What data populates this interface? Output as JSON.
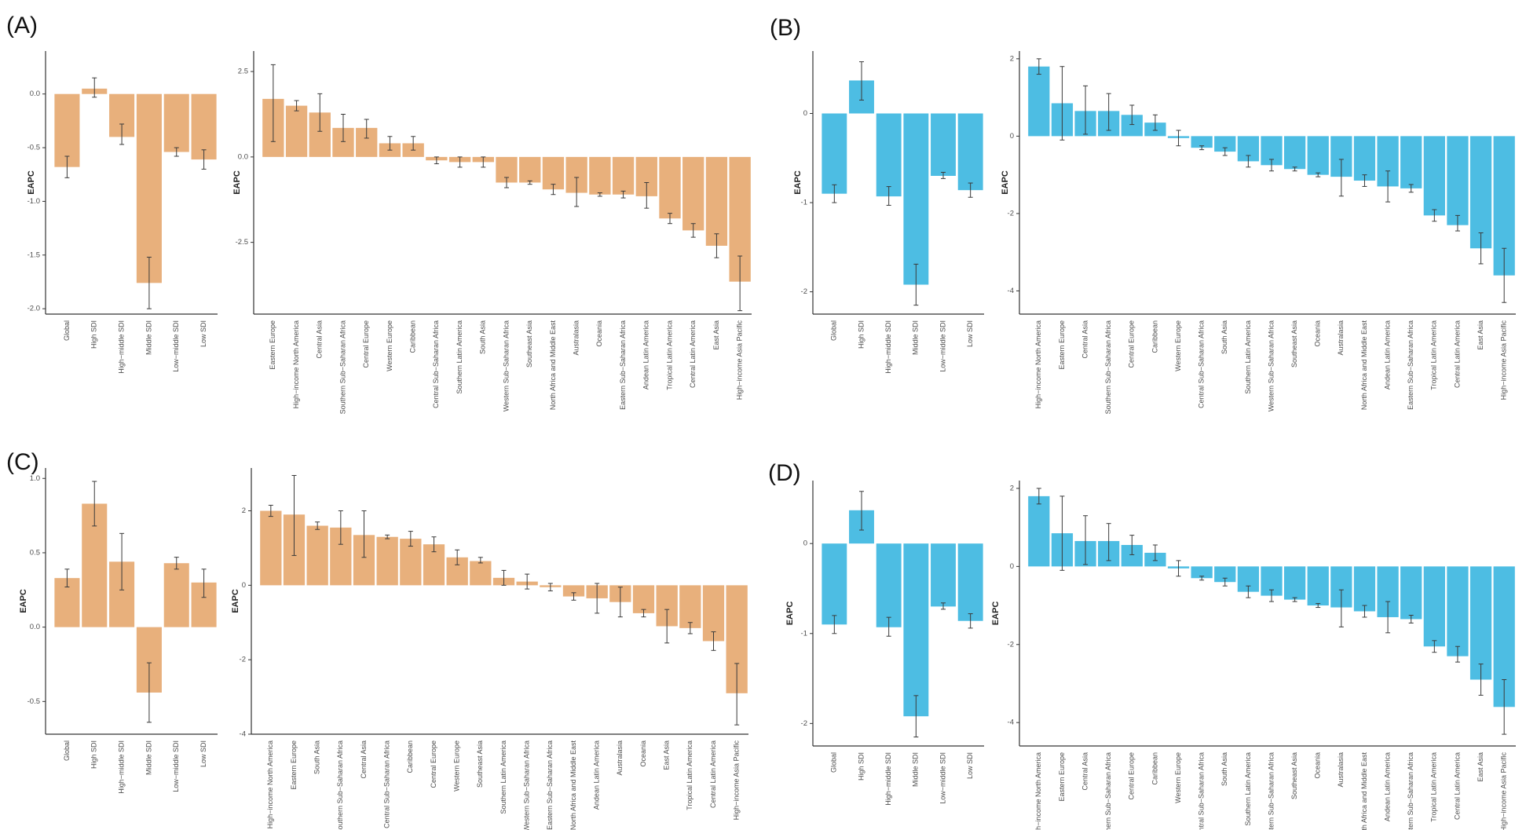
{
  "panel_labels": [
    "(A)",
    "(B)",
    "(C)",
    "(D)"
  ],
  "colors": {
    "orange": "#e8b07c",
    "blue": "#4dbde3",
    "axis": "#333333",
    "error": "#3a3a3a"
  },
  "chart_data": [
    {
      "id": "A-sdi",
      "panel": "(A)",
      "type": "bar",
      "title": "",
      "xlabel": "",
      "ylabel": "EAPC",
      "color": "orange",
      "ylim": [
        -2.05,
        0.4
      ],
      "yticks": [
        0.0,
        -0.5,
        -1.0,
        -1.5,
        -2.0
      ],
      "ytick_labels": [
        "0.0",
        "-0.5",
        "-1.0",
        "-1.5",
        "-2.0"
      ],
      "categories": [
        "Global",
        "High SDI",
        "High−middle SDI",
        "Middle SDI",
        "Low−middle SDI",
        "Low SDI"
      ],
      "values": [
        -0.68,
        0.05,
        -0.4,
        -1.76,
        -0.54,
        -0.61
      ],
      "err_low": [
        -0.78,
        -0.03,
        -0.47,
        -2.0,
        -0.58,
        -0.7
      ],
      "err_high": [
        -0.58,
        0.15,
        -0.28,
        -1.52,
        -0.5,
        -0.52
      ]
    },
    {
      "id": "A-regions",
      "panel": "(A)",
      "type": "bar",
      "title": "",
      "xlabel": "",
      "ylabel": "EAPC",
      "color": "orange",
      "ylim": [
        -4.6,
        3.1
      ],
      "yticks": [
        2.5,
        0.0,
        -2.5
      ],
      "ytick_labels": [
        "2.5",
        "0.0",
        "-2.5"
      ],
      "categories": [
        "Eastern Europe",
        "High−income North America",
        "Central Asia",
        "Southern Sub−Saharan Africa",
        "Central Europe",
        "Western Europe",
        "Caribbean",
        "Central Sub−Saharan Africa",
        "Southern Latin America",
        "South Asia",
        "Western Sub−Saharan Africa",
        "Southeast Asia",
        "North Africa and Middle East",
        "Australasia",
        "Oceania",
        "Eastern Sub−Saharan Africa",
        "Andean Latin America",
        "Tropical Latin America",
        "Central Latin America",
        "East Asia",
        "High−income Asia Pacific"
      ],
      "values": [
        1.7,
        1.5,
        1.3,
        0.85,
        0.85,
        0.4,
        0.4,
        -0.1,
        -0.15,
        -0.15,
        -0.75,
        -0.75,
        -0.95,
        -1.05,
        -1.1,
        -1.1,
        -1.15,
        -1.8,
        -2.15,
        -2.6,
        -3.65
      ],
      "err_low": [
        0.45,
        1.35,
        0.75,
        0.45,
        0.55,
        0.2,
        0.2,
        -0.2,
        -0.3,
        -0.3,
        -0.9,
        -0.8,
        -1.1,
        -1.45,
        -1.15,
        -1.2,
        -1.5,
        -1.95,
        -2.35,
        -2.95,
        -4.5
      ],
      "err_high": [
        2.7,
        1.65,
        1.85,
        1.25,
        1.1,
        0.6,
        0.6,
        0.0,
        0.0,
        0.0,
        -0.6,
        -0.7,
        -0.8,
        -0.6,
        -1.05,
        -1.0,
        -0.75,
        -1.65,
        -1.95,
        -2.25,
        -2.9
      ]
    },
    {
      "id": "B-sdi",
      "panel": "(B)",
      "type": "bar",
      "title": "",
      "xlabel": "",
      "ylabel": "EAPC",
      "color": "blue",
      "ylim": [
        -2.25,
        0.7
      ],
      "yticks": [
        0,
        -1,
        -2
      ],
      "ytick_labels": [
        "0",
        "-1",
        "-2"
      ],
      "categories": [
        "Global",
        "High SDI",
        "High−middle SDI",
        "Middle SDI",
        "Low−middle SDI",
        "Low SDI"
      ],
      "values": [
        -0.9,
        0.37,
        -0.93,
        -1.92,
        -0.7,
        -0.86
      ],
      "err_low": [
        -1.0,
        0.15,
        -1.03,
        -2.15,
        -0.73,
        -0.94
      ],
      "err_high": [
        -0.8,
        0.58,
        -0.82,
        -1.69,
        -0.66,
        -0.78
      ]
    },
    {
      "id": "B-regions",
      "panel": "(B)",
      "type": "bar",
      "title": "",
      "xlabel": "",
      "ylabel": "EAPC",
      "color": "blue",
      "ylim": [
        -4.6,
        2.2
      ],
      "yticks": [
        2,
        0,
        -2,
        -4
      ],
      "ytick_labels": [
        "2",
        "0",
        "-2",
        "-4"
      ],
      "categories": [
        "High−income North America",
        "Eastern Europe",
        "Central Asia",
        "Southern Sub−Saharan Africa",
        "Central Europe",
        "Caribbean",
        "Western Europe",
        "Central Sub−Saharan Africa",
        "South Asia",
        "Southern Latin America",
        "Western Sub−Saharan Africa",
        "Southeast Asia",
        "Oceania",
        "Australasia",
        "North Africa and Middle East",
        "Andean Latin America",
        "Eastern Sub−Saharan Africa",
        "Tropical Latin America",
        "Central Latin America",
        "East Asia",
        "High−income Asia Pacific"
      ],
      "values": [
        1.8,
        0.85,
        0.65,
        0.65,
        0.55,
        0.35,
        -0.05,
        -0.3,
        -0.4,
        -0.65,
        -0.75,
        -0.85,
        -1.0,
        -1.05,
        -1.15,
        -1.3,
        -1.35,
        -2.05,
        -2.3,
        -2.9,
        -3.6
      ],
      "err_low": [
        1.6,
        -0.1,
        0.05,
        0.15,
        0.3,
        0.15,
        -0.25,
        -0.35,
        -0.5,
        -0.8,
        -0.9,
        -0.9,
        -1.05,
        -1.55,
        -1.3,
        -1.7,
        -1.45,
        -2.2,
        -2.45,
        -3.3,
        -4.3
      ],
      "err_high": [
        2.0,
        1.8,
        1.3,
        1.1,
        0.8,
        0.55,
        0.15,
        -0.25,
        -0.3,
        -0.5,
        -0.6,
        -0.8,
        -0.95,
        -0.6,
        -1.0,
        -0.9,
        -1.25,
        -1.9,
        -2.05,
        -2.5,
        -2.9
      ]
    },
    {
      "id": "C-sdi",
      "panel": "(C)",
      "type": "bar",
      "title": "",
      "xlabel": "",
      "ylabel": "EAPC",
      "color": "orange",
      "ylim": [
        -0.72,
        1.07
      ],
      "yticks": [
        1.0,
        0.5,
        0.0,
        -0.5
      ],
      "ytick_labels": [
        "1.0",
        "0.5",
        "0.0",
        "-0.5"
      ],
      "categories": [
        "Global",
        "High SDI",
        "High−middle SDI",
        "Middle SDI",
        "Low−middle SDI",
        "Low SDI"
      ],
      "values": [
        0.33,
        0.83,
        0.44,
        -0.44,
        0.43,
        0.3
      ],
      "err_low": [
        0.27,
        0.68,
        0.25,
        -0.64,
        0.39,
        0.2
      ],
      "err_high": [
        0.39,
        0.98,
        0.63,
        -0.24,
        0.47,
        0.39
      ]
    },
    {
      "id": "C-regions",
      "panel": "(C)",
      "type": "bar",
      "title": "",
      "xlabel": "",
      "ylabel": "EAPC",
      "color": "orange",
      "ylim": [
        -4.0,
        3.15
      ],
      "yticks": [
        2,
        0,
        -2,
        -4
      ],
      "ytick_labels": [
        "2",
        "0",
        "-2",
        "-4"
      ],
      "categories": [
        "High−income North America",
        "Eastern Europe",
        "South Asia",
        "Southern Sub−Saharan Africa",
        "Central Asia",
        "Central Sub−Saharan Africa",
        "Caribbean",
        "Central Europe",
        "Western Europe",
        "Southeast Asia",
        "Southern Latin America",
        "Western Sub−Saharan Africa",
        "Eastern Sub−Saharan Africa",
        "North Africa and Middle East",
        "Andean Latin America",
        "Australasia",
        "Oceania",
        "East Asia",
        "Tropical Latin America",
        "Central Latin America",
        "High−income Asia Pacific"
      ],
      "values": [
        2.0,
        1.9,
        1.6,
        1.55,
        1.35,
        1.3,
        1.25,
        1.1,
        0.75,
        0.65,
        0.2,
        0.1,
        -0.05,
        -0.3,
        -0.35,
        -0.45,
        -0.75,
        -1.1,
        -1.15,
        -1.5,
        -2.9
      ],
      "err_low": [
        1.85,
        0.8,
        1.5,
        1.1,
        0.75,
        1.25,
        1.05,
        0.9,
        0.55,
        0.6,
        0.0,
        -0.1,
        -0.15,
        -0.4,
        -0.75,
        -0.85,
        -0.85,
        -1.55,
        -1.3,
        -1.75,
        -3.75
      ],
      "err_high": [
        2.15,
        2.95,
        1.7,
        2.0,
        2.0,
        1.35,
        1.45,
        1.3,
        0.95,
        0.75,
        0.4,
        0.3,
        0.05,
        -0.2,
        0.05,
        -0.05,
        -0.65,
        -0.65,
        -1.0,
        -1.25,
        -2.1
      ]
    },
    {
      "id": "D-sdi",
      "panel": "(D)",
      "type": "bar",
      "title": "",
      "xlabel": "",
      "ylabel": "EAPC",
      "color": "blue",
      "ylim": [
        -2.25,
        0.7
      ],
      "yticks": [
        0,
        -1,
        -2
      ],
      "ytick_labels": [
        "0",
        "-1",
        "-2"
      ],
      "categories": [
        "Global",
        "High SDI",
        "High−middle SDI",
        "Middle SDI",
        "Low−middle SDI",
        "Low SDI"
      ],
      "values": [
        -0.9,
        0.37,
        -0.93,
        -1.92,
        -0.7,
        -0.86
      ],
      "err_low": [
        -1.0,
        0.15,
        -1.03,
        -2.15,
        -0.73,
        -0.94
      ],
      "err_high": [
        -0.8,
        0.58,
        -0.82,
        -1.69,
        -0.66,
        -0.78
      ]
    },
    {
      "id": "D-regions",
      "panel": "(D)",
      "type": "bar",
      "title": "",
      "xlabel": "",
      "ylabel": "EAPC",
      "color": "blue",
      "ylim": [
        -4.6,
        2.2
      ],
      "yticks": [
        2,
        0,
        -2,
        -4
      ],
      "ytick_labels": [
        "2",
        "0",
        "-2",
        "-4"
      ],
      "categories": [
        "High−income North America",
        "Eastern Europe",
        "Central Asia",
        "Southern Sub−Saharan Africa",
        "Central Europe",
        "Caribbean",
        "Western Europe",
        "Central Sub−Saharan Africa",
        "South Asia",
        "Southern Latin America",
        "Western Sub−Saharan Africa",
        "Southeast Asia",
        "Oceania",
        "Australasia",
        "North Africa and Middle East",
        "Andean Latin America",
        "Eastern Sub−Saharan Africa",
        "Tropical Latin America",
        "Central Latin America",
        "East Asia",
        "High−income Asia Pacific"
      ],
      "values": [
        1.8,
        0.85,
        0.65,
        0.65,
        0.55,
        0.35,
        -0.05,
        -0.3,
        -0.4,
        -0.65,
        -0.75,
        -0.85,
        -1.0,
        -1.05,
        -1.15,
        -1.3,
        -1.35,
        -2.05,
        -2.3,
        -2.9,
        -3.6
      ],
      "err_low": [
        1.6,
        -0.1,
        0.05,
        0.15,
        0.3,
        0.15,
        -0.25,
        -0.35,
        -0.5,
        -0.8,
        -0.9,
        -0.9,
        -1.05,
        -1.55,
        -1.3,
        -1.7,
        -1.45,
        -2.2,
        -2.45,
        -3.3,
        -4.3
      ],
      "err_high": [
        2.0,
        1.8,
        1.3,
        1.1,
        0.8,
        0.55,
        0.15,
        -0.25,
        -0.3,
        -0.5,
        -0.6,
        -0.8,
        -0.95,
        -0.6,
        -1.0,
        -0.9,
        -1.25,
        -1.9,
        -2.05,
        -2.5,
        -2.9
      ]
    }
  ]
}
